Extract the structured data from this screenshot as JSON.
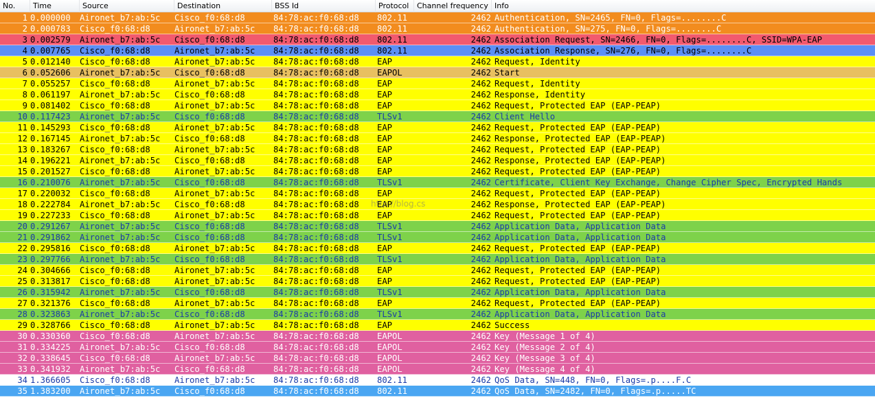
{
  "columns": {
    "no": "No.",
    "time": "Time",
    "source": "Source",
    "destination": "Destination",
    "bssid": "BSS Id",
    "protocol": "Protocol",
    "channel": "Channel frequency",
    "info": "Info"
  },
  "colors": {
    "orange": "#f28c1e",
    "red": "#f25a6e",
    "blue": "#5b8ff5",
    "yellow": "#ffff00",
    "tan": "#e8c060",
    "green": "#7ed24a",
    "pink": "#e060a0",
    "white": "#ffffff",
    "skyblue": "#4aa6f2"
  },
  "watermark": "http://blog.cs",
  "packets": [
    {
      "no": "1",
      "time": "0.000000",
      "src": "Aironet_b7:ab:5c",
      "dst": "Cisco_f0:68:d8",
      "bssid": "84:78:ac:f0:68:d8",
      "proto": "802.11",
      "chan": "2462",
      "info": "Authentication, SN=2465, FN=0, Flags=........C",
      "color": "orange",
      "fg": "#ffffff"
    },
    {
      "no": "2",
      "time": "0.000783",
      "src": "Cisco_f0:68:d8",
      "dst": "Aironet_b7:ab:5c",
      "bssid": "84:78:ac:f0:68:d8",
      "proto": "802.11",
      "chan": "2462",
      "info": "Authentication, SN=275, FN=0, Flags=........C",
      "color": "orange",
      "fg": "#ffffff"
    },
    {
      "no": "3",
      "time": "0.002579",
      "src": "Aironet_b7:ab:5c",
      "dst": "Cisco_f0:68:d8",
      "bssid": "84:78:ac:f0:68:d8",
      "proto": "802.11",
      "chan": "2462",
      "info": "Association Request, SN=2466, FN=0, Flags=........C, SSID=WPA-EAP",
      "color": "red",
      "fg": "#000000"
    },
    {
      "no": "4",
      "time": "0.007765",
      "src": "Cisco_f0:68:d8",
      "dst": "Aironet_b7:ab:5c",
      "bssid": "84:78:ac:f0:68:d8",
      "proto": "802.11",
      "chan": "2462",
      "info": "Association Response, SN=276, FN=0, Flags=........C",
      "color": "blue",
      "fg": "#000000"
    },
    {
      "no": "5",
      "time": "0.012140",
      "src": "Cisco_f0:68:d8",
      "dst": "Aironet_b7:ab:5c",
      "bssid": "84:78:ac:f0:68:d8",
      "proto": "EAP",
      "chan": "2462",
      "info": "Request, Identity",
      "color": "yellow",
      "fg": "#000000"
    },
    {
      "no": "6",
      "time": "0.052606",
      "src": "Aironet_b7:ab:5c",
      "dst": "Cisco_f0:68:d8",
      "bssid": "84:78:ac:f0:68:d8",
      "proto": "EAPOL",
      "chan": "2462",
      "info": "Start",
      "color": "tan",
      "fg": "#000000"
    },
    {
      "no": "7",
      "time": "0.055257",
      "src": "Cisco_f0:68:d8",
      "dst": "Aironet_b7:ab:5c",
      "bssid": "84:78:ac:f0:68:d8",
      "proto": "EAP",
      "chan": "2462",
      "info": "Request, Identity",
      "color": "yellow",
      "fg": "#000000"
    },
    {
      "no": "8",
      "time": "0.061197",
      "src": "Aironet_b7:ab:5c",
      "dst": "Cisco_f0:68:d8",
      "bssid": "84:78:ac:f0:68:d8",
      "proto": "EAP",
      "chan": "2462",
      "info": "Response, Identity",
      "color": "yellow",
      "fg": "#000000"
    },
    {
      "no": "9",
      "time": "0.081402",
      "src": "Cisco_f0:68:d8",
      "dst": "Aironet_b7:ab:5c",
      "bssid": "84:78:ac:f0:68:d8",
      "proto": "EAP",
      "chan": "2462",
      "info": "Request, Protected EAP (EAP-PEAP)",
      "color": "yellow",
      "fg": "#000000"
    },
    {
      "no": "10",
      "time": "0.117423",
      "src": "Aironet_b7:ab:5c",
      "dst": "Cisco_f0:68:d8",
      "bssid": "84:78:ac:f0:68:d8",
      "proto": "TLSv1",
      "chan": "2462",
      "info": "Client Hello",
      "color": "green",
      "fg": "#1a3aa8"
    },
    {
      "no": "11",
      "time": "0.145293",
      "src": "Cisco_f0:68:d8",
      "dst": "Aironet_b7:ab:5c",
      "bssid": "84:78:ac:f0:68:d8",
      "proto": "EAP",
      "chan": "2462",
      "info": "Request, Protected EAP (EAP-PEAP)",
      "color": "yellow",
      "fg": "#000000"
    },
    {
      "no": "12",
      "time": "0.167145",
      "src": "Aironet_b7:ab:5c",
      "dst": "Cisco_f0:68:d8",
      "bssid": "84:78:ac:f0:68:d8",
      "proto": "EAP",
      "chan": "2462",
      "info": "Response, Protected EAP (EAP-PEAP)",
      "color": "yellow",
      "fg": "#000000"
    },
    {
      "no": "13",
      "time": "0.183267",
      "src": "Cisco_f0:68:d8",
      "dst": "Aironet_b7:ab:5c",
      "bssid": "84:78:ac:f0:68:d8",
      "proto": "EAP",
      "chan": "2462",
      "info": "Request, Protected EAP (EAP-PEAP)",
      "color": "yellow",
      "fg": "#000000"
    },
    {
      "no": "14",
      "time": "0.196221",
      "src": "Aironet_b7:ab:5c",
      "dst": "Cisco_f0:68:d8",
      "bssid": "84:78:ac:f0:68:d8",
      "proto": "EAP",
      "chan": "2462",
      "info": "Response, Protected EAP (EAP-PEAP)",
      "color": "yellow",
      "fg": "#000000"
    },
    {
      "no": "15",
      "time": "0.201527",
      "src": "Cisco_f0:68:d8",
      "dst": "Aironet_b7:ab:5c",
      "bssid": "84:78:ac:f0:68:d8",
      "proto": "EAP",
      "chan": "2462",
      "info": "Request, Protected EAP (EAP-PEAP)",
      "color": "yellow",
      "fg": "#000000"
    },
    {
      "no": "16",
      "time": "0.210076",
      "src": "Aironet_b7:ab:5c",
      "dst": "Cisco_f0:68:d8",
      "bssid": "84:78:ac:f0:68:d8",
      "proto": "TLSv1",
      "chan": "2462",
      "info": "Certificate, Client Key Exchange, Change Cipher Spec, Encrypted Hands",
      "color": "green",
      "fg": "#1a3aa8"
    },
    {
      "no": "17",
      "time": "0.220032",
      "src": "Cisco_f0:68:d8",
      "dst": "Aironet_b7:ab:5c",
      "bssid": "84:78:ac:f0:68:d8",
      "proto": "EAP",
      "chan": "2462",
      "info": "Request, Protected EAP (EAP-PEAP)",
      "color": "yellow",
      "fg": "#000000"
    },
    {
      "no": "18",
      "time": "0.222784",
      "src": "Aironet_b7:ab:5c",
      "dst": "Cisco_f0:68:d8",
      "bssid": "84:78:ac:f0:68:d8",
      "proto": "EAP",
      "chan": "2462",
      "info": "Response, Protected EAP (EAP-PEAP)",
      "color": "yellow",
      "fg": "#000000"
    },
    {
      "no": "19",
      "time": "0.227233",
      "src": "Cisco_f0:68:d8",
      "dst": "Aironet_b7:ab:5c",
      "bssid": "84:78:ac:f0:68:d8",
      "proto": "EAP",
      "chan": "2462",
      "info": "Request, Protected EAP (EAP-PEAP)",
      "color": "yellow",
      "fg": "#000000"
    },
    {
      "no": "20",
      "time": "0.291267",
      "src": "Aironet_b7:ab:5c",
      "dst": "Cisco_f0:68:d8",
      "bssid": "84:78:ac:f0:68:d8",
      "proto": "TLSv1",
      "chan": "2462",
      "info": "Application Data, Application Data",
      "color": "green",
      "fg": "#1a3aa8"
    },
    {
      "no": "21",
      "time": "0.291862",
      "src": "Aironet_b7:ab:5c",
      "dst": "Cisco_f0:68:d8",
      "bssid": "84:78:ac:f0:68:d8",
      "proto": "TLSv1",
      "chan": "2462",
      "info": "Application Data, Application Data",
      "color": "green",
      "fg": "#1a3aa8"
    },
    {
      "no": "22",
      "time": "0.295816",
      "src": "Cisco_f0:68:d8",
      "dst": "Aironet_b7:ab:5c",
      "bssid": "84:78:ac:f0:68:d8",
      "proto": "EAP",
      "chan": "2462",
      "info": "Request, Protected EAP (EAP-PEAP)",
      "color": "yellow",
      "fg": "#000000"
    },
    {
      "no": "23",
      "time": "0.297766",
      "src": "Aironet_b7:ab:5c",
      "dst": "Cisco_f0:68:d8",
      "bssid": "84:78:ac:f0:68:d8",
      "proto": "TLSv1",
      "chan": "2462",
      "info": "Application Data, Application Data",
      "color": "green",
      "fg": "#1a3aa8"
    },
    {
      "no": "24",
      "time": "0.304666",
      "src": "Cisco_f0:68:d8",
      "dst": "Aironet_b7:ab:5c",
      "bssid": "84:78:ac:f0:68:d8",
      "proto": "EAP",
      "chan": "2462",
      "info": "Request, Protected EAP (EAP-PEAP)",
      "color": "yellow",
      "fg": "#000000"
    },
    {
      "no": "25",
      "time": "0.313817",
      "src": "Cisco_f0:68:d8",
      "dst": "Aironet_b7:ab:5c",
      "bssid": "84:78:ac:f0:68:d8",
      "proto": "EAP",
      "chan": "2462",
      "info": "Request, Protected EAP (EAP-PEAP)",
      "color": "yellow",
      "fg": "#000000"
    },
    {
      "no": "26",
      "time": "0.315942",
      "src": "Aironet_b7:ab:5c",
      "dst": "Cisco_f0:68:d8",
      "bssid": "84:78:ac:f0:68:d8",
      "proto": "TLSv1",
      "chan": "2462",
      "info": "Application Data, Application Data",
      "color": "green",
      "fg": "#1a3aa8"
    },
    {
      "no": "27",
      "time": "0.321376",
      "src": "Cisco_f0:68:d8",
      "dst": "Aironet_b7:ab:5c",
      "bssid": "84:78:ac:f0:68:d8",
      "proto": "EAP",
      "chan": "2462",
      "info": "Request, Protected EAP (EAP-PEAP)",
      "color": "yellow",
      "fg": "#000000"
    },
    {
      "no": "28",
      "time": "0.323863",
      "src": "Aironet_b7:ab:5c",
      "dst": "Cisco_f0:68:d8",
      "bssid": "84:78:ac:f0:68:d8",
      "proto": "TLSv1",
      "chan": "2462",
      "info": "Application Data, Application Data",
      "color": "green",
      "fg": "#1a3aa8"
    },
    {
      "no": "29",
      "time": "0.328766",
      "src": "Cisco_f0:68:d8",
      "dst": "Aironet_b7:ab:5c",
      "bssid": "84:78:ac:f0:68:d8",
      "proto": "EAP",
      "chan": "2462",
      "info": "Success",
      "color": "yellow",
      "fg": "#000000"
    },
    {
      "no": "30",
      "time": "0.330360",
      "src": "Cisco_f0:68:d8",
      "dst": "Aironet_b7:ab:5c",
      "bssid": "84:78:ac:f0:68:d8",
      "proto": "EAPOL",
      "chan": "2462",
      "info": "Key (Message 1 of 4)",
      "color": "pink",
      "fg": "#ffffff"
    },
    {
      "no": "31",
      "time": "0.334225",
      "src": "Aironet_b7:ab:5c",
      "dst": "Cisco_f0:68:d8",
      "bssid": "84:78:ac:f0:68:d8",
      "proto": "EAPOL",
      "chan": "2462",
      "info": "Key (Message 2 of 4)",
      "color": "pink",
      "fg": "#ffffff"
    },
    {
      "no": "32",
      "time": "0.338645",
      "src": "Cisco_f0:68:d8",
      "dst": "Aironet_b7:ab:5c",
      "bssid": "84:78:ac:f0:68:d8",
      "proto": "EAPOL",
      "chan": "2462",
      "info": "Key (Message 3 of 4)",
      "color": "pink",
      "fg": "#ffffff"
    },
    {
      "no": "33",
      "time": "0.341932",
      "src": "Aironet_b7:ab:5c",
      "dst": "Cisco_f0:68:d8",
      "bssid": "84:78:ac:f0:68:d8",
      "proto": "EAPOL",
      "chan": "2462",
      "info": "Key (Message 4 of 4)",
      "color": "pink",
      "fg": "#ffffff"
    },
    {
      "no": "34",
      "time": "1.366605",
      "src": "Cisco_f0:68:d8",
      "dst": "Aironet_b7:ab:5c",
      "bssid": "84:78:ac:f0:68:d8",
      "proto": "802.11",
      "chan": "2462",
      "info": "QoS Data, SN=448, FN=0, Flags=.p....F.C",
      "color": "white",
      "fg": "#1a3aa8"
    },
    {
      "no": "35",
      "time": "1.383200",
      "src": "Aironet_b7:ab:5c",
      "dst": "Cisco_f0:68:d8",
      "bssid": "84:78:ac:f0:68:d8",
      "proto": "802.11",
      "chan": "2462",
      "info": "QoS Data, SN=2482, FN=0, Flags=.p.....TC",
      "color": "skyblue",
      "fg": "#ffffff"
    }
  ]
}
